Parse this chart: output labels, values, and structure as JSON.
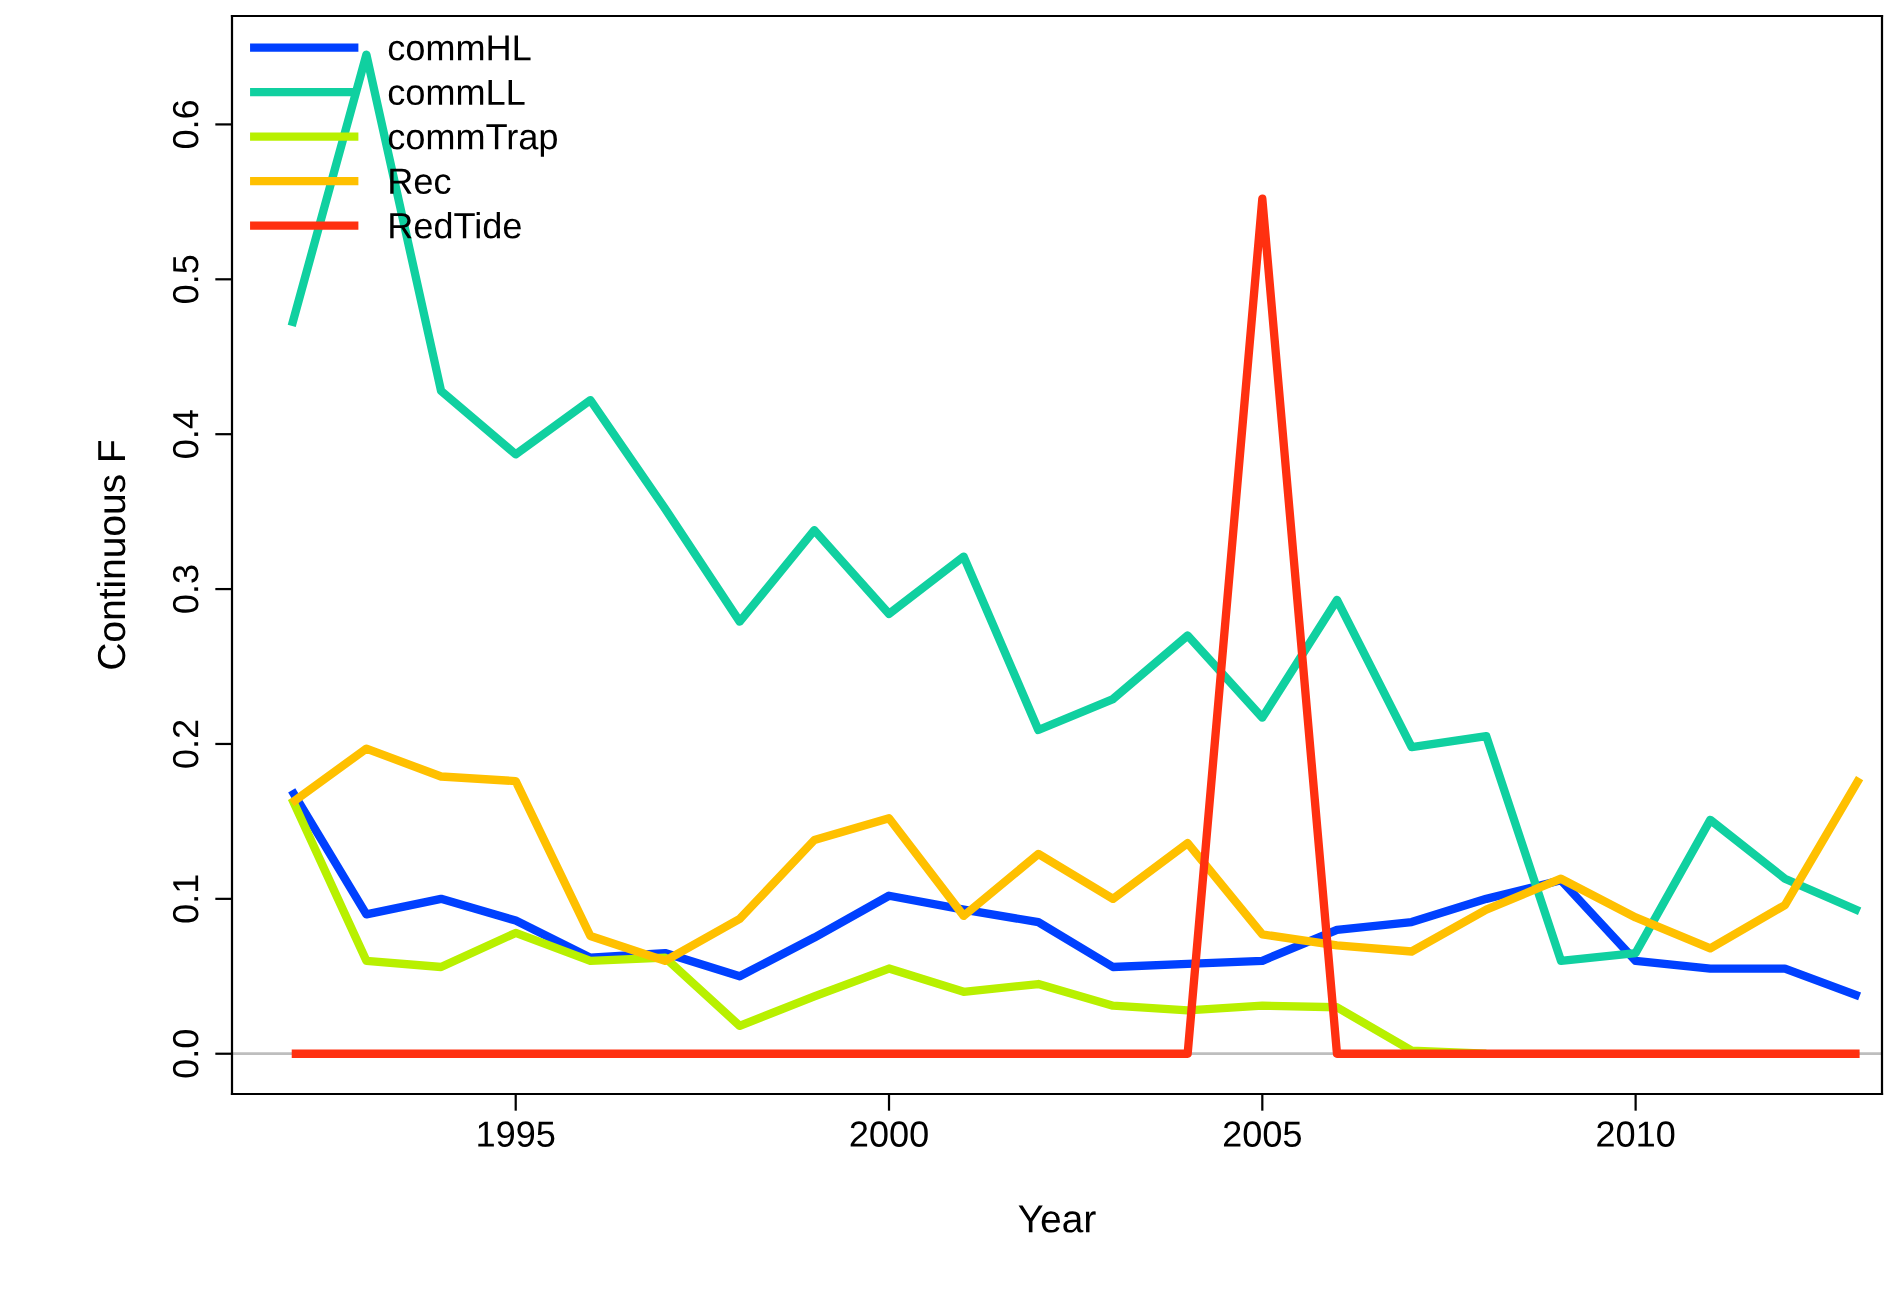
{
  "chart_data": {
    "type": "line",
    "xlabel": "Year",
    "ylabel": "Continuous F",
    "x": [
      1992,
      1993,
      1994,
      1995,
      1996,
      1997,
      1998,
      1999,
      2000,
      2001,
      2002,
      2003,
      2004,
      2005,
      2006,
      2007,
      2008,
      2009,
      2010,
      2011,
      2012,
      2013
    ],
    "series": [
      {
        "name": "commHL",
        "color": "#0040ff",
        "values": [
          0.17,
          0.09,
          0.1,
          0.086,
          0.062,
          0.065,
          0.05,
          0.075,
          0.102,
          0.093,
          0.085,
          0.056,
          0.058,
          0.06,
          0.08,
          0.085,
          0.1,
          0.112,
          0.06,
          0.055,
          0.055,
          0.037
        ]
      },
      {
        "name": "commLL",
        "color": "#10d0a0",
        "values": [
          0.47,
          0.645,
          0.428,
          0.387,
          0.422,
          0.352,
          0.279,
          0.338,
          0.284,
          0.321,
          0.209,
          0.229,
          0.27,
          0.217,
          0.293,
          0.198,
          0.205,
          0.06,
          0.065,
          0.151,
          0.113,
          0.092
        ]
      },
      {
        "name": "commTrap",
        "color": "#b8f000",
        "values": [
          0.165,
          0.06,
          0.056,
          0.078,
          0.06,
          0.062,
          0.018,
          0.037,
          0.055,
          0.04,
          0.045,
          0.031,
          0.028,
          0.031,
          0.03,
          0.002,
          0,
          null,
          null,
          null,
          null,
          null
        ]
      },
      {
        "name": "Rec",
        "color": "#ffc000",
        "values": [
          0.162,
          0.197,
          0.179,
          0.176,
          0.076,
          0.06,
          0.087,
          0.138,
          0.152,
          0.089,
          0.129,
          0.1,
          0.136,
          0.077,
          0.07,
          0.066,
          0.093,
          0.113,
          0.088,
          0.068,
          0.096,
          0.178
        ]
      },
      {
        "name": "RedTide",
        "color": "#ff3010",
        "values": [
          0,
          0,
          0,
          0,
          0,
          0,
          0,
          0,
          0,
          0,
          0,
          0,
          0,
          0.552,
          0,
          0,
          0,
          0,
          0,
          0,
          0,
          0
        ]
      }
    ],
    "xlim": [
      1991.2,
      2013.3
    ],
    "ylim": [
      -0.026,
      0.67
    ],
    "xticks": [
      1995,
      2000,
      2005,
      2010
    ],
    "yticks": [
      {
        "value": 0,
        "label": "0.0"
      },
      0.1,
      0.2,
      0.3,
      0.4,
      0.5,
      0.6
    ],
    "ref_lines": [
      {
        "axis": "y",
        "value": 0,
        "color": "#bebebe"
      }
    ],
    "legend": "top left",
    "grid": false,
    "line_style": "solid",
    "marker": "none"
  }
}
